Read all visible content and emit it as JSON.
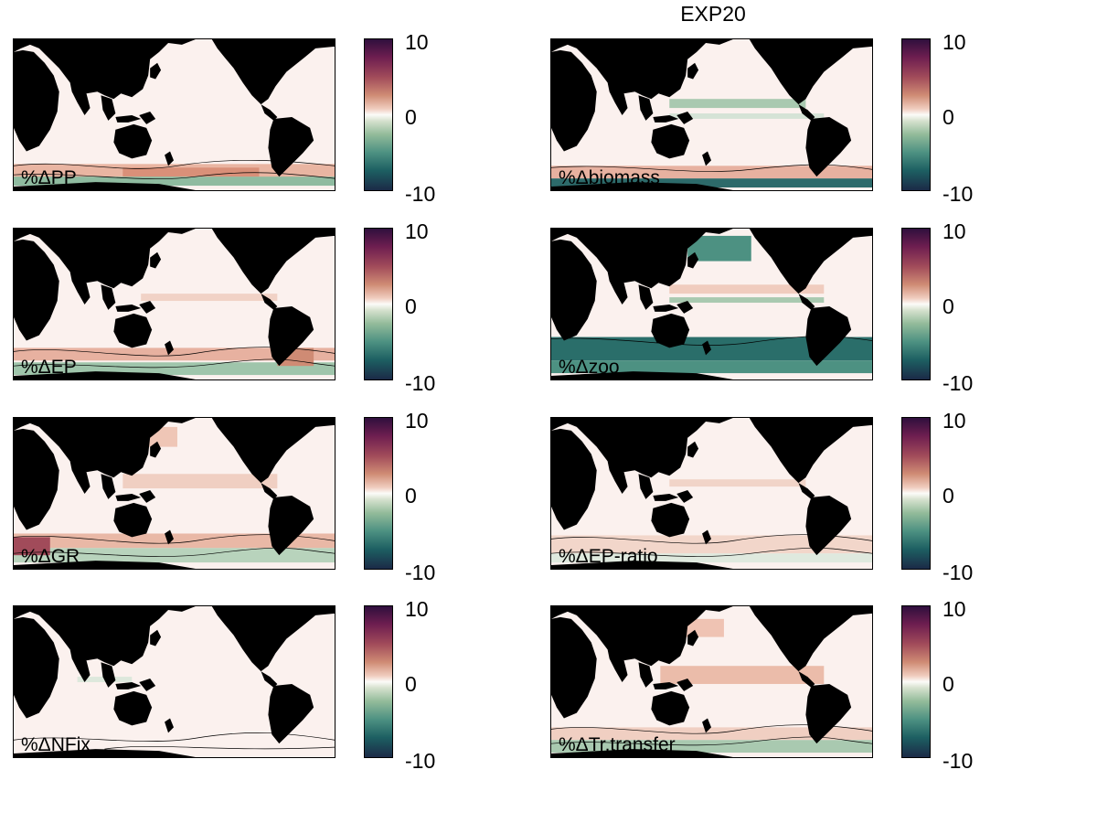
{
  "title": "EXP20",
  "colorbar": {
    "max_label": "10",
    "mid_label": "0",
    "min_label": "-10",
    "vmin": -10,
    "vmax": 10
  },
  "panels": [
    {
      "label": "%ΔPP"
    },
    {
      "label": "%Δbiomass"
    },
    {
      "label": "%ΔEP"
    },
    {
      "label": "%Δzoo"
    },
    {
      "label": "%ΔGR"
    },
    {
      "label": "%ΔEP-ratio"
    },
    {
      "label": "%ΔNFix"
    },
    {
      "label": "%ΔTr.transfer"
    }
  ],
  "colors": {
    "land": "#000000",
    "ocean_zero": "#fbf1ee",
    "positive": "#cf8b74",
    "negative": "#1d5f62"
  }
}
